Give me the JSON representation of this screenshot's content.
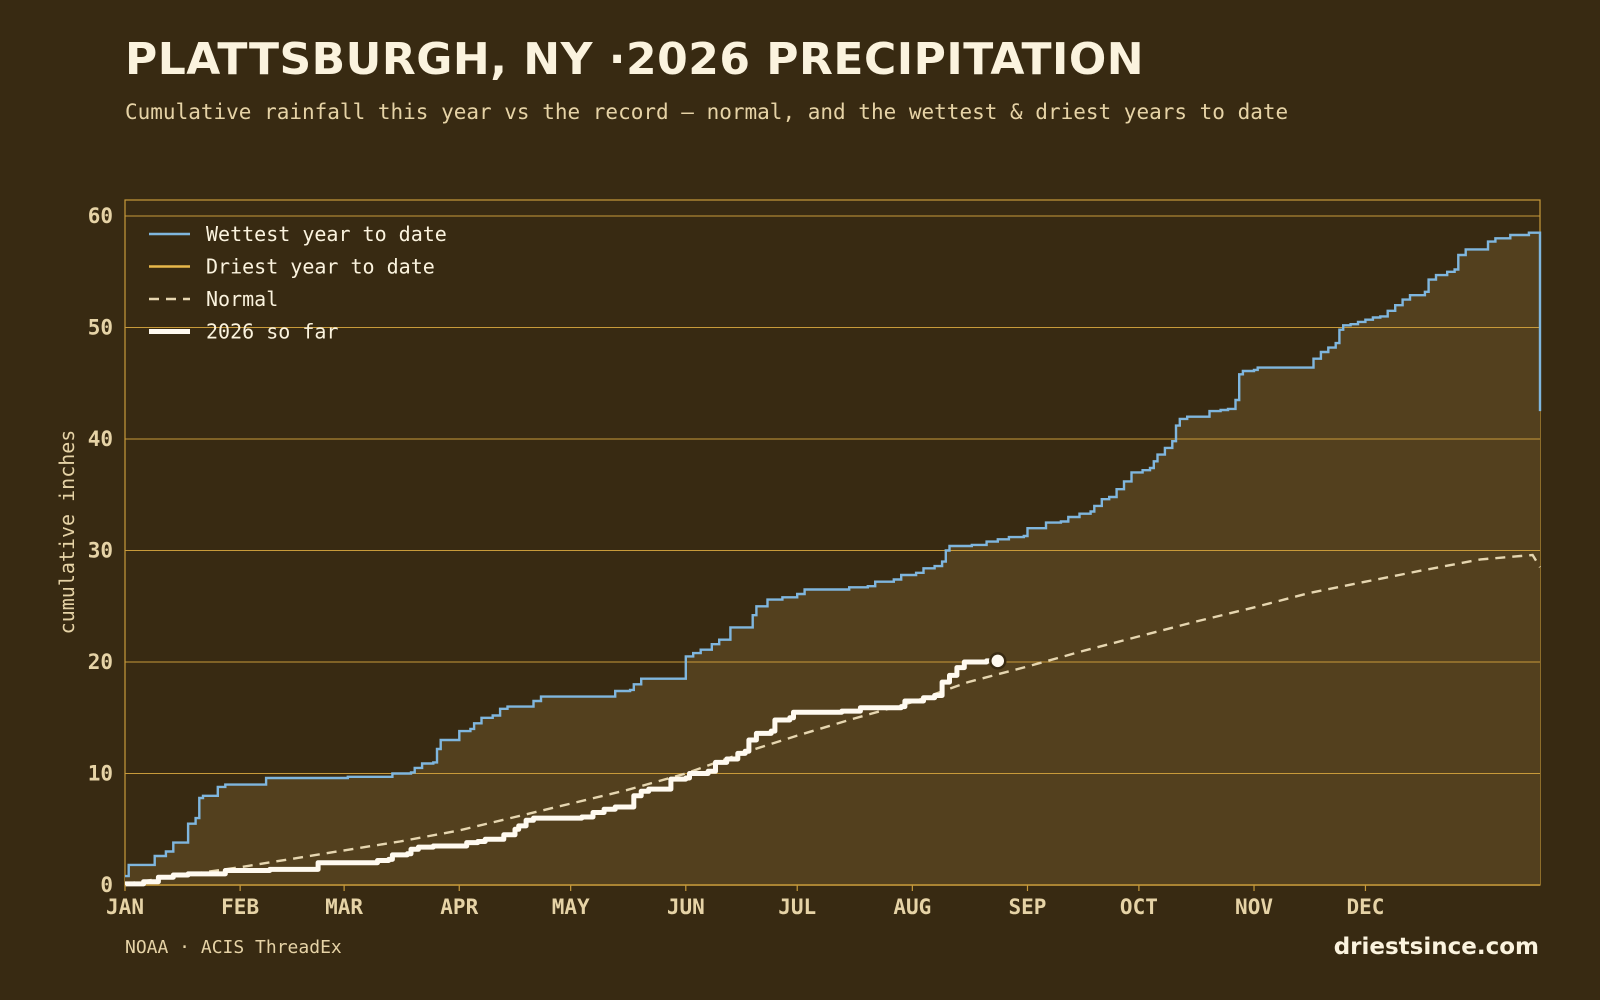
{
  "title": "PLATTSBURGH, NY ·2026 PRECIPITATION",
  "subtitle": "Cumulative rainfall this year vs the record — normal, and the wettest & driest years to date",
  "source": "NOAA · ACIS ThreadEx",
  "site": "driestsince.com",
  "colors": {
    "background": "#382a12",
    "plot_fill": "#53401e",
    "grid": "#c89a3a",
    "wettest": "#7fb6de",
    "driest": "#e8b84a",
    "normal": "#e6d6b0",
    "current": "#fffaf0"
  },
  "chart_data": {
    "type": "line",
    "title": "PLATTSBURGH, NY ·2026 PRECIPITATION",
    "xlabel": "",
    "ylabel": "cumulative inches",
    "ylim": [
      0,
      61
    ],
    "yticks": [
      0,
      10,
      20,
      30,
      40,
      50,
      60
    ],
    "x_unit": "day of year",
    "xlim": [
      1,
      366
    ],
    "month_ticks": [
      {
        "label": "JAN",
        "day": 1
      },
      {
        "label": "FEB",
        "day": 32
      },
      {
        "label": "MAR",
        "day": 60
      },
      {
        "label": "APR",
        "day": 91
      },
      {
        "label": "MAY",
        "day": 121
      },
      {
        "label": "JUN",
        "day": 152
      },
      {
        "label": "JUL",
        "day": 182
      },
      {
        "label": "AUG",
        "day": 213
      },
      {
        "label": "SEP",
        "day": 244
      },
      {
        "label": "OCT",
        "day": 274
      },
      {
        "label": "NOV",
        "day": 305
      },
      {
        "label": "DEC",
        "day": 335
      }
    ],
    "grid": true,
    "legend_position": "top-left",
    "legend": [
      {
        "key": "wettest",
        "label": "Wettest year to date"
      },
      {
        "key": "driest",
        "label": "Driest year to date"
      },
      {
        "key": "normal",
        "label": "Normal"
      },
      {
        "key": "current",
        "label": "2026 so far"
      }
    ],
    "series": [
      {
        "name": "Wettest year to date",
        "key": "wettest",
        "step": true,
        "points": [
          [
            1,
            0.8
          ],
          [
            2,
            1.8
          ],
          [
            8,
            1.8
          ],
          [
            9,
            2.6
          ],
          [
            12,
            3.0
          ],
          [
            14,
            3.8
          ],
          [
            17,
            3.8
          ],
          [
            18,
            5.5
          ],
          [
            20,
            6.0
          ],
          [
            21,
            7.8
          ],
          [
            22,
            8.0
          ],
          [
            25,
            8.0
          ],
          [
            26,
            8.8
          ],
          [
            28,
            9.0
          ],
          [
            38,
            9.0
          ],
          [
            39,
            9.6
          ],
          [
            60,
            9.6
          ],
          [
            61,
            9.7
          ],
          [
            72,
            9.7
          ],
          [
            73,
            10.0
          ],
          [
            78,
            10.1
          ],
          [
            79,
            10.5
          ],
          [
            81,
            10.9
          ],
          [
            84,
            11.0
          ],
          [
            85,
            12.2
          ],
          [
            86,
            13.0
          ],
          [
            90,
            13.0
          ],
          [
            91,
            13.8
          ],
          [
            94,
            14.0
          ],
          [
            95,
            14.5
          ],
          [
            97,
            15.0
          ],
          [
            100,
            15.2
          ],
          [
            102,
            15.8
          ],
          [
            104,
            16.0
          ],
          [
            110,
            16.0
          ],
          [
            111,
            16.5
          ],
          [
            113,
            16.9
          ],
          [
            132,
            16.9
          ],
          [
            133,
            17.4
          ],
          [
            137,
            17.5
          ],
          [
            138,
            18.0
          ],
          [
            140,
            18.5
          ],
          [
            151,
            18.5
          ],
          [
            152,
            20.5
          ],
          [
            154,
            20.8
          ],
          [
            156,
            21.1
          ],
          [
            159,
            21.6
          ],
          [
            161,
            22.0
          ],
          [
            163,
            22.0
          ],
          [
            164,
            23.1
          ],
          [
            168,
            23.1
          ],
          [
            170,
            24.2
          ],
          [
            171,
            25.0
          ],
          [
            174,
            25.6
          ],
          [
            178,
            25.8
          ],
          [
            182,
            26.1
          ],
          [
            184,
            26.5
          ],
          [
            195,
            26.5
          ],
          [
            196,
            26.7
          ],
          [
            201,
            26.8
          ],
          [
            203,
            27.2
          ],
          [
            208,
            27.4
          ],
          [
            210,
            27.8
          ],
          [
            214,
            28.0
          ],
          [
            216,
            28.4
          ],
          [
            219,
            28.6
          ],
          [
            221,
            29.0
          ],
          [
            222,
            30.0
          ],
          [
            223,
            30.4
          ],
          [
            229,
            30.5
          ],
          [
            233,
            30.8
          ],
          [
            236,
            31.0
          ],
          [
            239,
            31.2
          ],
          [
            243,
            31.3
          ],
          [
            244,
            32.0
          ],
          [
            247,
            32.0
          ],
          [
            249,
            32.5
          ],
          [
            253,
            32.6
          ],
          [
            255,
            33.0
          ],
          [
            258,
            33.3
          ],
          [
            261,
            33.5
          ],
          [
            262,
            34.0
          ],
          [
            264,
            34.6
          ],
          [
            266,
            34.8
          ],
          [
            268,
            35.5
          ],
          [
            270,
            36.2
          ],
          [
            272,
            37.0
          ],
          [
            275,
            37.2
          ],
          [
            277,
            37.4
          ],
          [
            278,
            38.0
          ],
          [
            279,
            38.6
          ],
          [
            281,
            39.2
          ],
          [
            283,
            39.8
          ],
          [
            284,
            41.2
          ],
          [
            285,
            41.8
          ],
          [
            287,
            42.0
          ],
          [
            292,
            42.0
          ],
          [
            293,
            42.5
          ],
          [
            296,
            42.6
          ],
          [
            298,
            42.7
          ],
          [
            300,
            43.5
          ],
          [
            301,
            45.8
          ],
          [
            302,
            46.1
          ],
          [
            305,
            46.2
          ],
          [
            306,
            46.4
          ],
          [
            320,
            46.4
          ],
          [
            321,
            47.2
          ],
          [
            323,
            47.8
          ],
          [
            325,
            48.2
          ],
          [
            327,
            48.6
          ],
          [
            328,
            49.8
          ],
          [
            329,
            50.2
          ],
          [
            331,
            50.3
          ],
          [
            333,
            50.5
          ],
          [
            335,
            50.7
          ],
          [
            337,
            50.9
          ],
          [
            339,
            51.0
          ],
          [
            341,
            51.5
          ],
          [
            343,
            52.0
          ],
          [
            345,
            52.5
          ],
          [
            347,
            52.9
          ],
          [
            351,
            53.2
          ],
          [
            352,
            54.3
          ],
          [
            354,
            54.7
          ],
          [
            357,
            55.0
          ],
          [
            359,
            55.2
          ],
          [
            360,
            56.5
          ],
          [
            362,
            57.0
          ],
          [
            366,
            57.0
          ],
          [
            368,
            57.7
          ],
          [
            370,
            58.0
          ],
          [
            374,
            58.3
          ],
          [
            379,
            58.5
          ],
          [
            381,
            58.5
          ],
          [
            382,
            42.5
          ]
        ]
      },
      {
        "name": "Normal",
        "key": "normal",
        "step": false,
        "points": [
          [
            1,
            0.1
          ],
          [
            15,
            0.8
          ],
          [
            32,
            1.6
          ],
          [
            45,
            2.3
          ],
          [
            60,
            3.1
          ],
          [
            75,
            3.9
          ],
          [
            91,
            4.9
          ],
          [
            106,
            6.1
          ],
          [
            121,
            7.3
          ],
          [
            136,
            8.5
          ],
          [
            152,
            10.0
          ],
          [
            167,
            11.8
          ],
          [
            182,
            13.4
          ],
          [
            197,
            14.9
          ],
          [
            213,
            16.4
          ],
          [
            228,
            18.2
          ],
          [
            244,
            19.6
          ],
          [
            259,
            21.0
          ],
          [
            274,
            22.3
          ],
          [
            289,
            23.6
          ],
          [
            305,
            24.9
          ],
          [
            320,
            26.2
          ],
          [
            335,
            27.2
          ],
          [
            350,
            28.2
          ],
          [
            366,
            29.2
          ],
          [
            380,
            29.6
          ],
          [
            382,
            28.5
          ]
        ]
      },
      {
        "name": "2026 so far",
        "key": "current",
        "step": true,
        "points": [
          [
            1,
            0.1
          ],
          [
            6,
            0.3
          ],
          [
            10,
            0.7
          ],
          [
            14,
            0.9
          ],
          [
            18,
            1.0
          ],
          [
            27,
            1.0
          ],
          [
            28,
            1.3
          ],
          [
            38,
            1.3
          ],
          [
            40,
            1.4
          ],
          [
            52,
            1.4
          ],
          [
            53,
            2.0
          ],
          [
            68,
            2.0
          ],
          [
            69,
            2.2
          ],
          [
            72,
            2.3
          ],
          [
            73,
            2.7
          ],
          [
            77,
            2.8
          ],
          [
            78,
            3.2
          ],
          [
            80,
            3.4
          ],
          [
            84,
            3.5
          ],
          [
            92,
            3.5
          ],
          [
            93,
            3.8
          ],
          [
            96,
            3.9
          ],
          [
            98,
            4.1
          ],
          [
            102,
            4.1
          ],
          [
            103,
            4.5
          ],
          [
            106,
            5.0
          ],
          [
            107,
            5.3
          ],
          [
            109,
            5.8
          ],
          [
            111,
            6.0
          ],
          [
            121,
            6.0
          ],
          [
            124,
            6.1
          ],
          [
            127,
            6.5
          ],
          [
            130,
            6.8
          ],
          [
            133,
            7.0
          ],
          [
            137,
            7.0
          ],
          [
            138,
            8.0
          ],
          [
            140,
            8.4
          ],
          [
            142,
            8.6
          ],
          [
            147,
            8.6
          ],
          [
            148,
            9.5
          ],
          [
            152,
            9.6
          ],
          [
            153,
            10.0
          ],
          [
            158,
            10.2
          ],
          [
            160,
            11.0
          ],
          [
            163,
            11.3
          ],
          [
            166,
            11.8
          ],
          [
            168,
            12.0
          ],
          [
            169,
            13.0
          ],
          [
            171,
            13.6
          ],
          [
            175,
            13.8
          ],
          [
            176,
            14.8
          ],
          [
            180,
            15.0
          ],
          [
            181,
            15.5
          ],
          [
            190,
            15.5
          ],
          [
            194,
            15.6
          ],
          [
            198,
            15.6
          ],
          [
            199,
            15.9
          ],
          [
            210,
            16.0
          ],
          [
            211,
            16.5
          ],
          [
            216,
            16.8
          ],
          [
            218,
            16.8
          ],
          [
            219,
            17.0
          ],
          [
            221,
            18.2
          ],
          [
            223,
            18.8
          ],
          [
            225,
            19.5
          ],
          [
            227,
            20.0
          ],
          [
            233,
            20.1
          ],
          [
            236,
            20.1
          ]
        ]
      }
    ],
    "driest_series": {
      "name": "Driest year to date",
      "points_visible": false
    },
    "marker": {
      "series": "2026 so far",
      "day": 236,
      "value": 20.1
    }
  }
}
